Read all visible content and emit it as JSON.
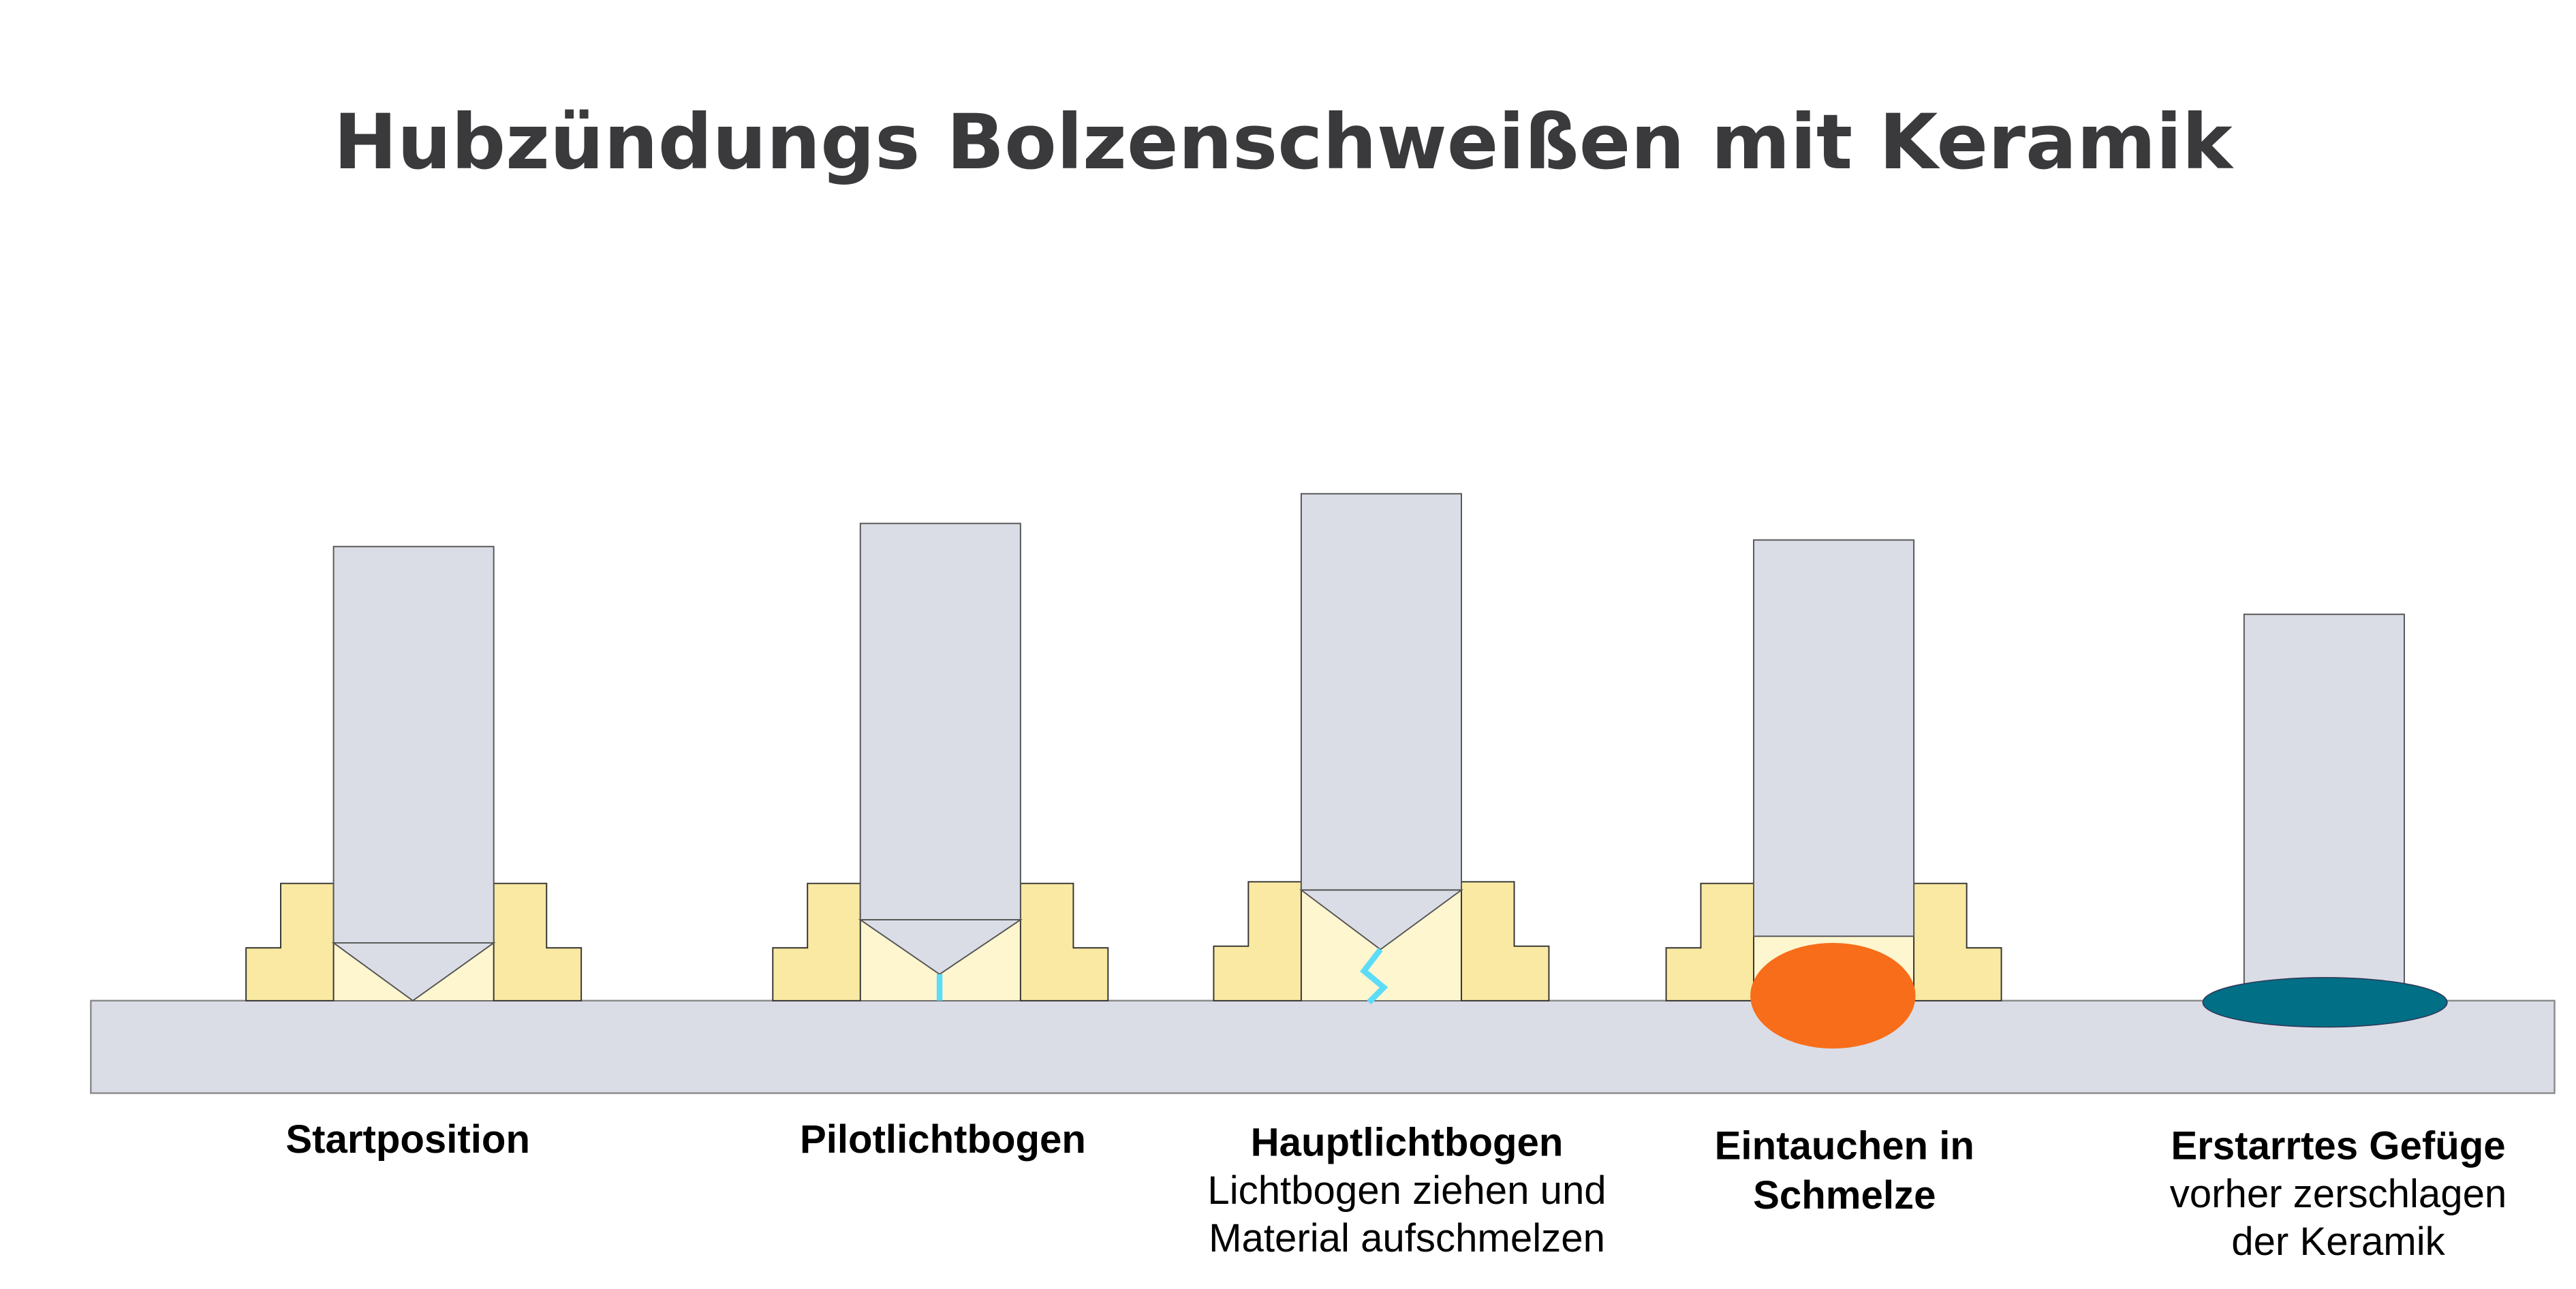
{
  "title": "Hubzündungs Bolzenschweißen mit Keramik",
  "colors": {
    "stud": "#dadde6",
    "ceramic": "#f9e9a2",
    "ceramic_inner": "#fef6cf",
    "arc": "#5cdcf8",
    "melt": "#f76d19",
    "solidified": "#016f86",
    "title": "#3a3a3c"
  },
  "stages": [
    {
      "heading": "Startposition",
      "lines": []
    },
    {
      "heading": "Pilotlichtbogen",
      "lines": []
    },
    {
      "heading": "Hauptlichtbogen",
      "lines": [
        "Lichtbogen ziehen und",
        "Material aufschmelzen"
      ]
    },
    {
      "heading": "Eintauchen in",
      "heading2": "Schmelze",
      "lines": []
    },
    {
      "heading": "Erstarrtes Gefüge",
      "lines": [
        "vorher zerschlagen",
        "der Keramik"
      ]
    }
  ]
}
